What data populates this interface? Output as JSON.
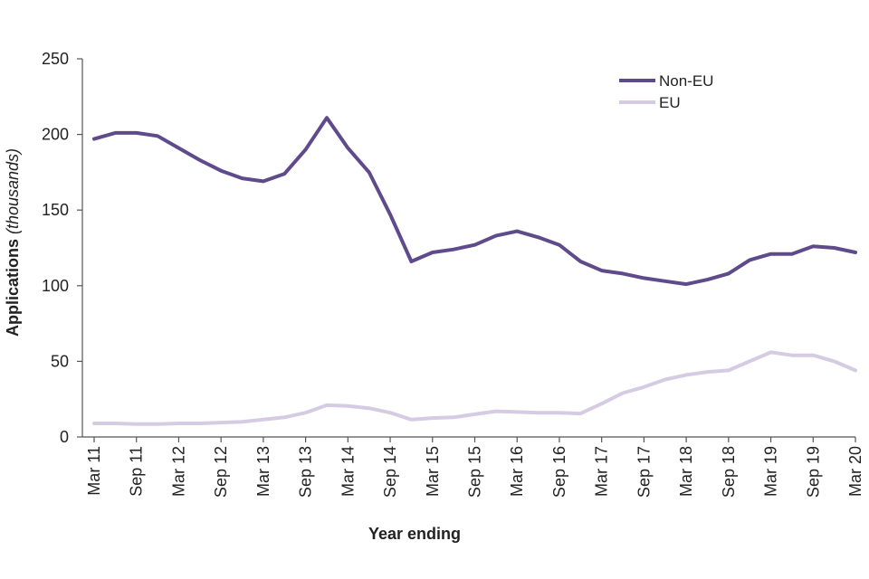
{
  "chart_data": {
    "type": "line",
    "xlabel": "Year ending",
    "ylabel_main": "Applications ",
    "ylabel_unit": "(thousands)",
    "ylim": [
      0,
      250
    ],
    "yticks": [
      0,
      50,
      100,
      150,
      200,
      250
    ],
    "grid": false,
    "legend_position": "top-right",
    "x": [
      "Mar 11",
      "Jun 11",
      "Sep 11",
      "Dec 11",
      "Mar 12",
      "Jun 12",
      "Sep 12",
      "Dec 12",
      "Mar 13",
      "Jun 13",
      "Sep 13",
      "Dec 13",
      "Mar 14",
      "Jun 14",
      "Sep 14",
      "Dec 14",
      "Mar 15",
      "Jun 15",
      "Sep 15",
      "Dec 15",
      "Mar 16",
      "Jun 16",
      "Sep 16",
      "Dec 16",
      "Mar 17",
      "Jun 17",
      "Sep 17",
      "Dec 17",
      "Mar 18",
      "Jun 18",
      "Sep 18",
      "Dec 18",
      "Mar 19",
      "Jun 19",
      "Sep 19",
      "Dec 19",
      "Mar 20"
    ],
    "xtick_labels": [
      "Mar 11",
      "Sep 11",
      "Mar 12",
      "Sep 12",
      "Mar 13",
      "Sep 13",
      "Mar 14",
      "Sep 14",
      "Mar 15",
      "Sep 15",
      "Mar 16",
      "Sep 16",
      "Mar 17",
      "Sep 17",
      "Mar 18",
      "Sep 18",
      "Mar 19",
      "Sep 19",
      "Mar 20"
    ],
    "series": [
      {
        "name": "Non-EU",
        "color": "#5f4b8b",
        "values": [
          197,
          201,
          201,
          199,
          191,
          183,
          176,
          171,
          169,
          174,
          190,
          211,
          191,
          175,
          147,
          116,
          122,
          124,
          127,
          133,
          136,
          132,
          127,
          116,
          110,
          108,
          105,
          103,
          101,
          104,
          108,
          117,
          121,
          121,
          126,
          125,
          122
        ]
      },
      {
        "name": "EU",
        "color": "#d5cce3",
        "values": [
          9,
          9,
          8.5,
          8.5,
          9,
          9,
          9.5,
          10,
          11.5,
          13,
          16,
          21,
          20.5,
          19,
          16,
          11.5,
          12.5,
          13,
          15,
          17,
          16.5,
          16,
          16,
          15.5,
          22,
          29,
          33,
          38,
          41,
          43,
          44,
          50,
          56,
          54,
          54,
          50,
          44
        ]
      }
    ]
  }
}
